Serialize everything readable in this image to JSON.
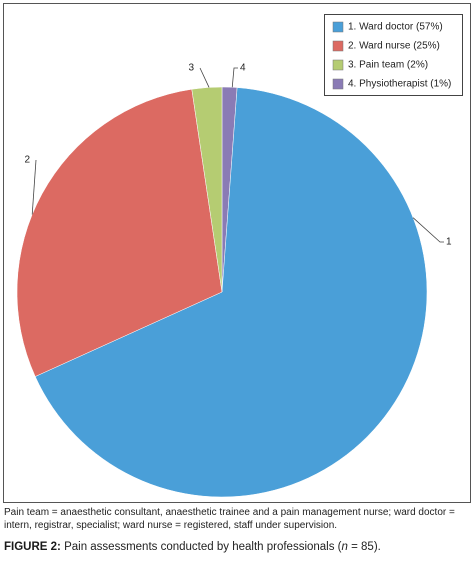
{
  "chart_data": {
    "type": "pie",
    "categories": [
      "1. Ward doctor (57%)",
      "2. Ward nurse (25%)",
      "3. Pain team (2%)",
      "4. Physiotherapist (1%)"
    ],
    "values": [
      57,
      25,
      2,
      1
    ],
    "colors": [
      "#4a9fd8",
      "#dc6a62",
      "#b5cc72",
      "#8a7bb5"
    ],
    "labels": [
      "1",
      "2",
      "3",
      "4"
    ],
    "legend": "upper right"
  },
  "footnote": "Pain team = anaesthetic consultant, anaesthetic trainee and a pain management nurse; ward doctor = intern, registrar, specialist; ward nurse = registered, staff under supervision.",
  "caption": {
    "label": "FIGURE 2:",
    "text_before": "Pain assessments conducted by health professionals (",
    "n": "n",
    "text_after": " = 85)."
  }
}
